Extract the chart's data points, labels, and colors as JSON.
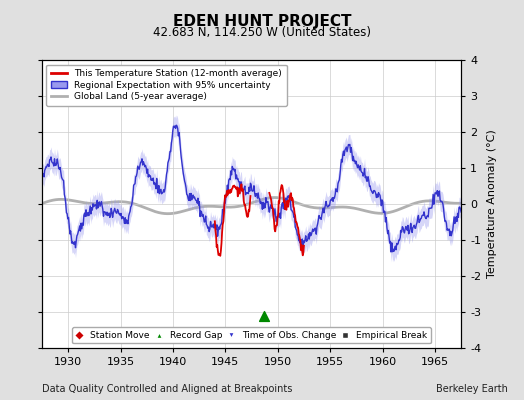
{
  "title": "EDEN HUNT PROJECT",
  "subtitle": "42.683 N, 114.250 W (United States)",
  "xlabel_bottom": "Data Quality Controlled and Aligned at Breakpoints",
  "xlabel_right": "Berkeley Earth",
  "ylabel": "Temperature Anomaly (°C)",
  "xlim": [
    1927.5,
    1967.5
  ],
  "ylim": [
    -4,
    4
  ],
  "yticks": [
    -4,
    -3,
    -2,
    -1,
    0,
    1,
    2,
    3,
    4
  ],
  "xticks": [
    1930,
    1935,
    1940,
    1945,
    1950,
    1955,
    1960,
    1965
  ],
  "bg_color": "#e0e0e0",
  "plot_bg_color": "#ffffff",
  "regional_color": "#3333cc",
  "regional_fill_color": "#9999ee",
  "station_color": "#dd0000",
  "global_color": "#b0b0b0",
  "record_gap_x": 1948.7,
  "record_gap_y": -3.1
}
